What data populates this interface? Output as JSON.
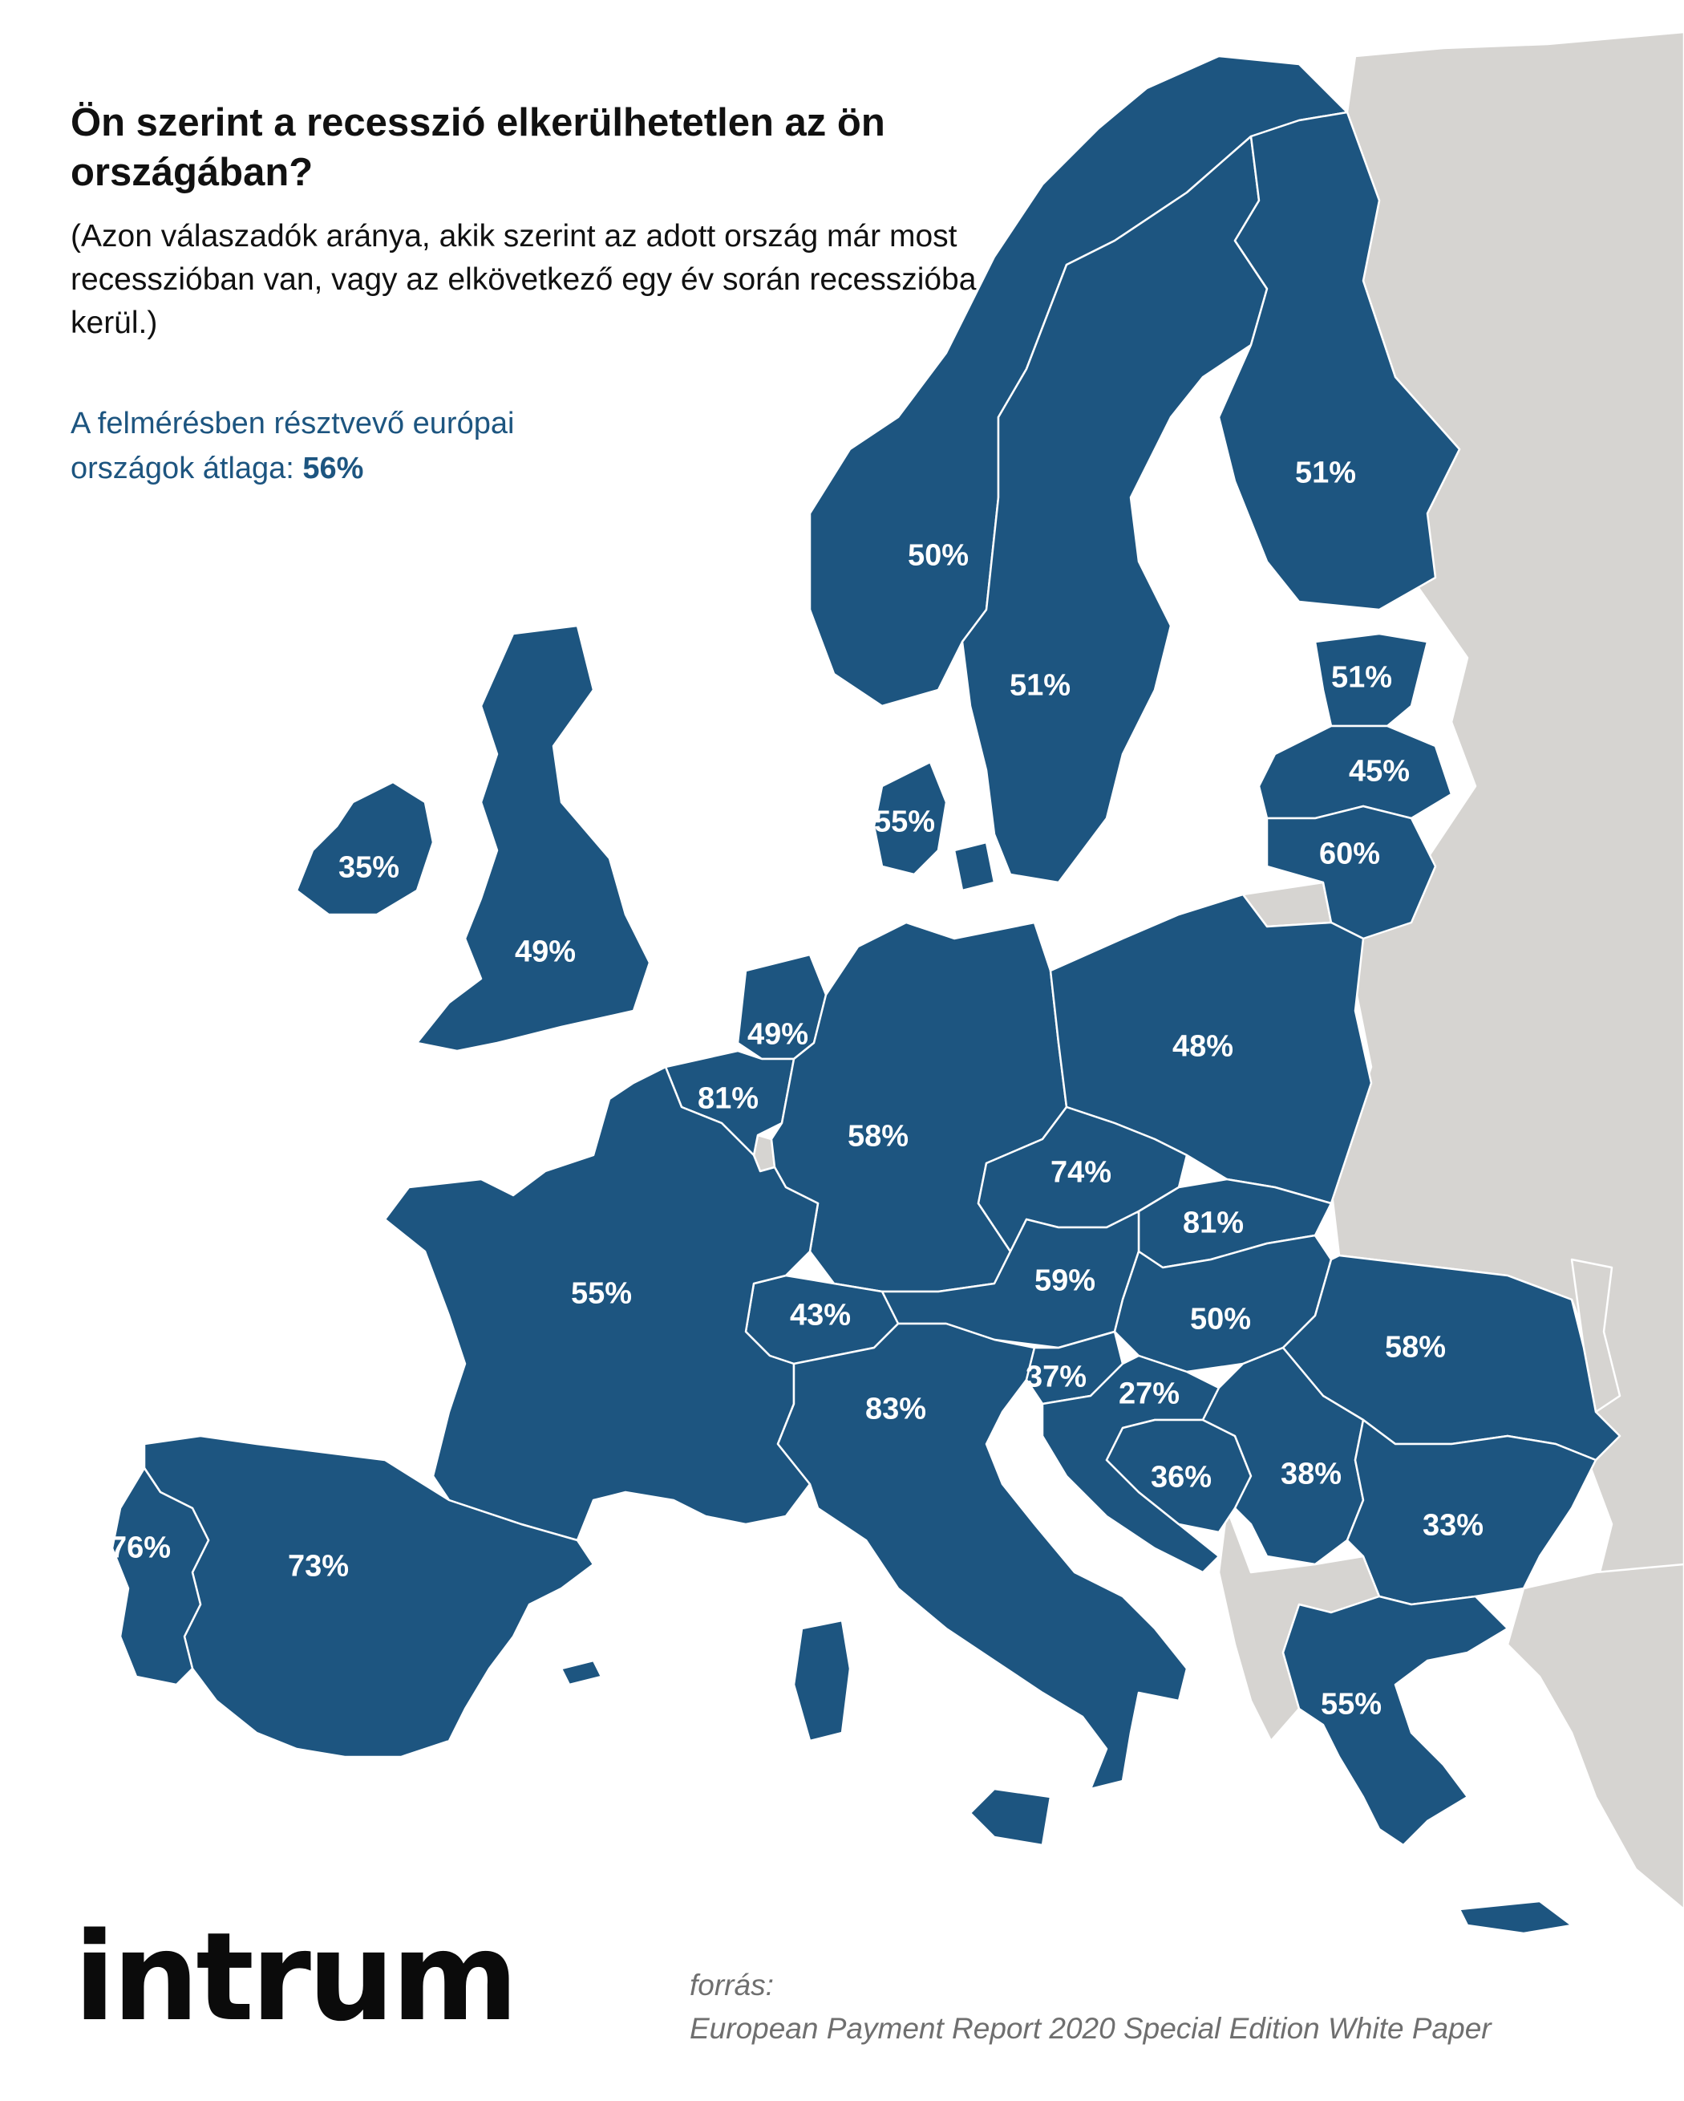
{
  "title": "Ön szerint a recesszió elkerülhetetlen az ön országában?",
  "subtitle": "(Azon válaszadók aránya, akik szerint az adott ország már most recesszióban van, vagy az elkövetkező egy év során recesszióba kerül.)",
  "average": {
    "label": "A felmérésben résztvevő európai országok átlaga:",
    "value": "56%"
  },
  "logo_text": "intrum",
  "source": {
    "label": "forrás:",
    "text": "European Payment Report 2020 Special Edition White Paper"
  },
  "colors": {
    "participating": "#1d5580",
    "non_participating": "#d6d4d1",
    "average_text": "#1d5580"
  },
  "map_values": {
    "norway": "50%",
    "sweden": "51%",
    "finland": "51%",
    "estonia": "51%",
    "latvia": "45%",
    "lithuania": "60%",
    "denmark": "55%",
    "ireland": "35%",
    "uk": "49%",
    "netherlands": "49%",
    "belgium": "81%",
    "germany": "58%",
    "poland": "48%",
    "czech": "74%",
    "slovakia": "81%",
    "austria": "59%",
    "hungary": "50%",
    "romania": "58%",
    "switzerland": "43%",
    "france": "55%",
    "italy": "83%",
    "slovenia": "37%",
    "croatia": "27%",
    "bosnia": "36%",
    "serbia": "38%",
    "bulgaria": "33%",
    "greece": "55%",
    "spain": "73%",
    "portugal": "76%"
  }
}
